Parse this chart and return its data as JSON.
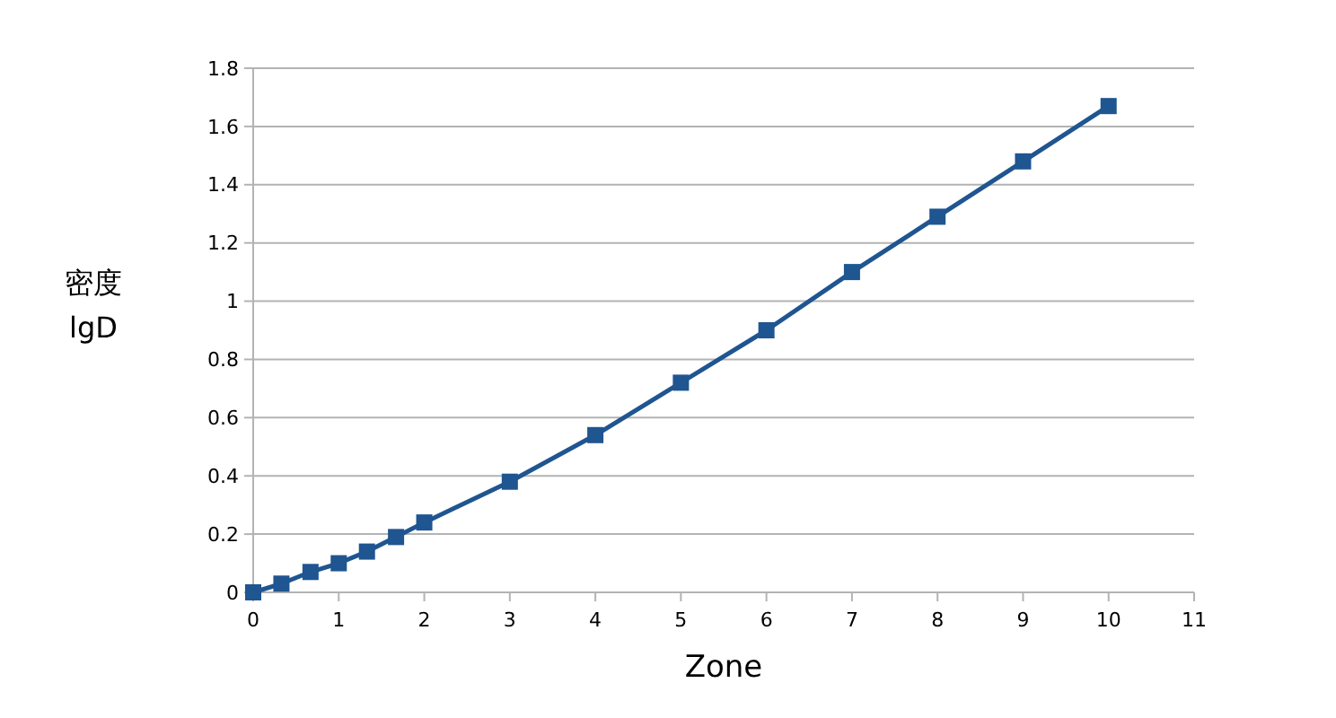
{
  "chart_data": {
    "type": "line",
    "xlabel": "Zone",
    "ylabel": "密度\nlgD",
    "x": [
      0,
      0.33,
      0.67,
      1,
      1.33,
      1.67,
      2,
      3,
      4,
      5,
      6,
      7,
      8,
      9,
      10
    ],
    "series": [
      {
        "color": "#1f5590",
        "values": [
          0,
          0.03,
          0.07,
          0.1,
          0.14,
          0.19,
          0.24,
          0.38,
          0.54,
          0.72,
          0.9,
          1.1,
          1.29,
          1.48,
          1.67
        ]
      }
    ],
    "xlim": [
      0,
      11
    ],
    "xticks": [
      0,
      1,
      2,
      3,
      4,
      5,
      6,
      7,
      8,
      9,
      10,
      11
    ],
    "ylim": [
      0,
      1.8
    ],
    "yticks": [
      0,
      0.2,
      0.4,
      0.6,
      0.8,
      1,
      1.2,
      1.4,
      1.6,
      1.8
    ],
    "grid": "y",
    "marker": "square",
    "line_style": "solid"
  }
}
